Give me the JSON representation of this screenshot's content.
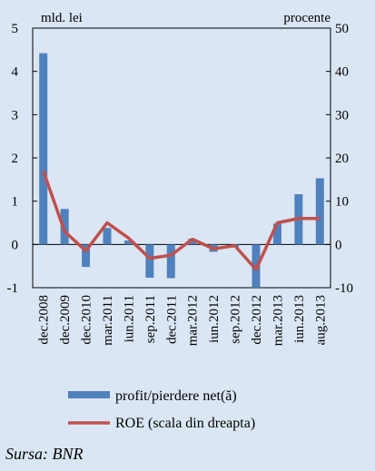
{
  "chart_data": {
    "type": "bar+line",
    "categories": [
      "dec.2008",
      "dec.2009",
      "dec.2010",
      "mar.2011",
      "iun.2011",
      "sep.2011",
      "dec.2011",
      "mar.2012",
      "iun.2012",
      "sep.2012",
      "dec.2012",
      "mar.2013",
      "iun.2013",
      "aug.2013"
    ],
    "left_axis": {
      "unit_label": "mld. lei",
      "ylim": [
        -1,
        5
      ],
      "ticks": [
        -1,
        0,
        1,
        2,
        3,
        4,
        5
      ]
    },
    "right_axis": {
      "unit_label": "procente",
      "ylim": [
        -10,
        50
      ],
      "ticks": [
        -10,
        0,
        10,
        20,
        30,
        40,
        50
      ]
    },
    "series": [
      {
        "name": "profit/pierdere net(ă)",
        "type": "bar",
        "axis": "left",
        "color": "#4f81bd",
        "values": [
          4.42,
          0.82,
          -0.52,
          0.38,
          0.09,
          -0.77,
          -0.78,
          0.13,
          -0.17,
          -0.07,
          -1.0,
          0.48,
          1.16,
          1.53
        ]
      },
      {
        "name": "ROE (scala din dreapta)",
        "type": "line",
        "axis": "right",
        "color": "#c0504d",
        "values": [
          17,
          3,
          -1.5,
          5,
          1.5,
          -3.2,
          -2.5,
          1.2,
          -1,
          -0.3,
          -5.8,
          5,
          6,
          6
        ]
      }
    ],
    "grid": false,
    "legend_position": "bottom"
  },
  "source_text": "Sursa: BNR"
}
